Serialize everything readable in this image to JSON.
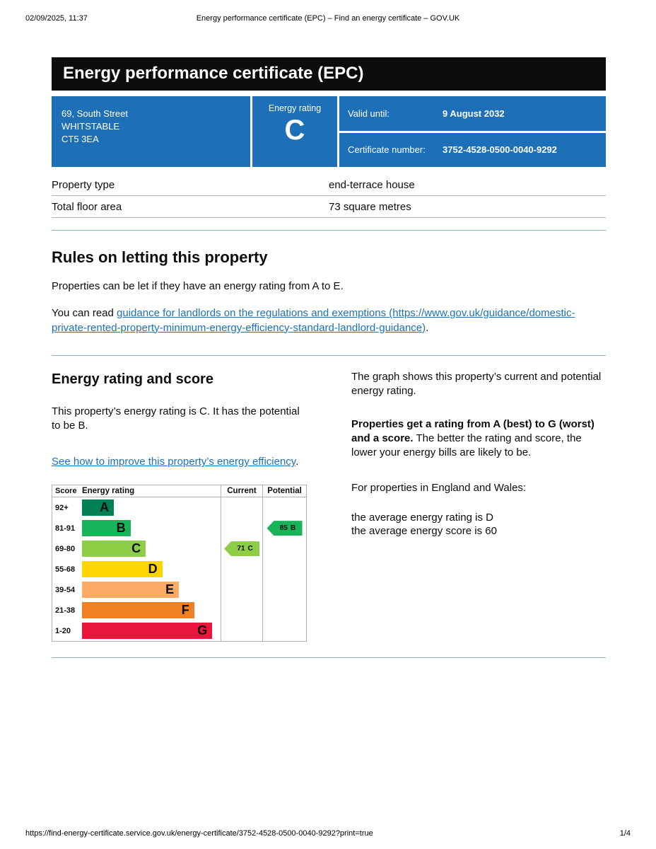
{
  "print_header": {
    "datetime": "02/09/2025, 11:37",
    "title": "Energy performance certificate (EPC) – Find an energy certificate – GOV.UK"
  },
  "banner": {
    "title": "Energy performance certificate (EPC)"
  },
  "summary": {
    "address_line1": "69, South Street",
    "address_line2": "WHITSTABLE",
    "address_line3": "CT5 3EA",
    "energy_rating_label": "Energy rating",
    "energy_rating": "C",
    "valid_until_label": "Valid until:",
    "valid_until": "9 August 2032",
    "certificate_number_label": "Certificate number:",
    "certificate_number": "3752-4528-0500-0040-9292"
  },
  "property_table": {
    "rows": [
      {
        "label": "Property type",
        "value": "end-terrace house"
      },
      {
        "label": "Total floor area",
        "value": "73 square metres"
      }
    ]
  },
  "letting_rules": {
    "heading": "Rules on letting this property",
    "paragraph1": "Properties can be let if they have an energy rating from A to E.",
    "paragraph2_prefix": "You can read ",
    "link_text": "guidance for landlords on the regulations and exemptions (https://www.gov.uk/guidance/domestic-private-rented-property-minimum-energy-efficiency-standard-landlord-guidance)",
    "paragraph2_suffix": "."
  },
  "rating_section": {
    "heading": "Energy rating and score",
    "paragraph1": "This property’s energy rating is C. It has the potential to be B.",
    "improve_link": "See how to improve this property’s energy efficiency",
    "improve_link_suffix": ".",
    "right_para1": "The graph shows this property’s current and potential energy rating.",
    "right_para2_bold": "Properties get a rating from A (best) to G (worst) and a score.",
    "right_para2_rest": " The better the rating and score, the lower your energy bills are likely to be.",
    "right_para3": "For properties in England and Wales:",
    "right_para4_line1": "the average energy rating is D",
    "right_para4_line2": "the average energy score is 60"
  },
  "chart_data": {
    "type": "bar",
    "title": "Energy rating and score",
    "headers": {
      "score": "Score",
      "rating": "Energy rating",
      "current": "Current",
      "potential": "Potential"
    },
    "bands": [
      {
        "score": "92+",
        "letter": "A",
        "color": "#008054",
        "width_pct": 23
      },
      {
        "score": "81-91",
        "letter": "B",
        "color": "#19b459",
        "width_pct": 35
      },
      {
        "score": "69-80",
        "letter": "C",
        "color": "#8dce46",
        "width_pct": 46
      },
      {
        "score": "55-68",
        "letter": "D",
        "color": "#ffd500",
        "width_pct": 58
      },
      {
        "score": "39-54",
        "letter": "E",
        "color": "#fcaa65",
        "width_pct": 70
      },
      {
        "score": "21-38",
        "letter": "F",
        "color": "#ef8023",
        "width_pct": 81
      },
      {
        "score": "1-20",
        "letter": "G",
        "color": "#e9153b",
        "width_pct": 94
      }
    ],
    "current": {
      "value": 71,
      "letter": "C",
      "band_index": 2,
      "color": "#8dce46"
    },
    "potential": {
      "value": 85,
      "letter": "B",
      "band_index": 1,
      "color": "#19b459"
    }
  },
  "print_footer": {
    "url": "https://find-energy-certificate.service.gov.uk/energy-certificate/3752-4528-0500-0040-9292?print=true",
    "page": "1/4"
  }
}
